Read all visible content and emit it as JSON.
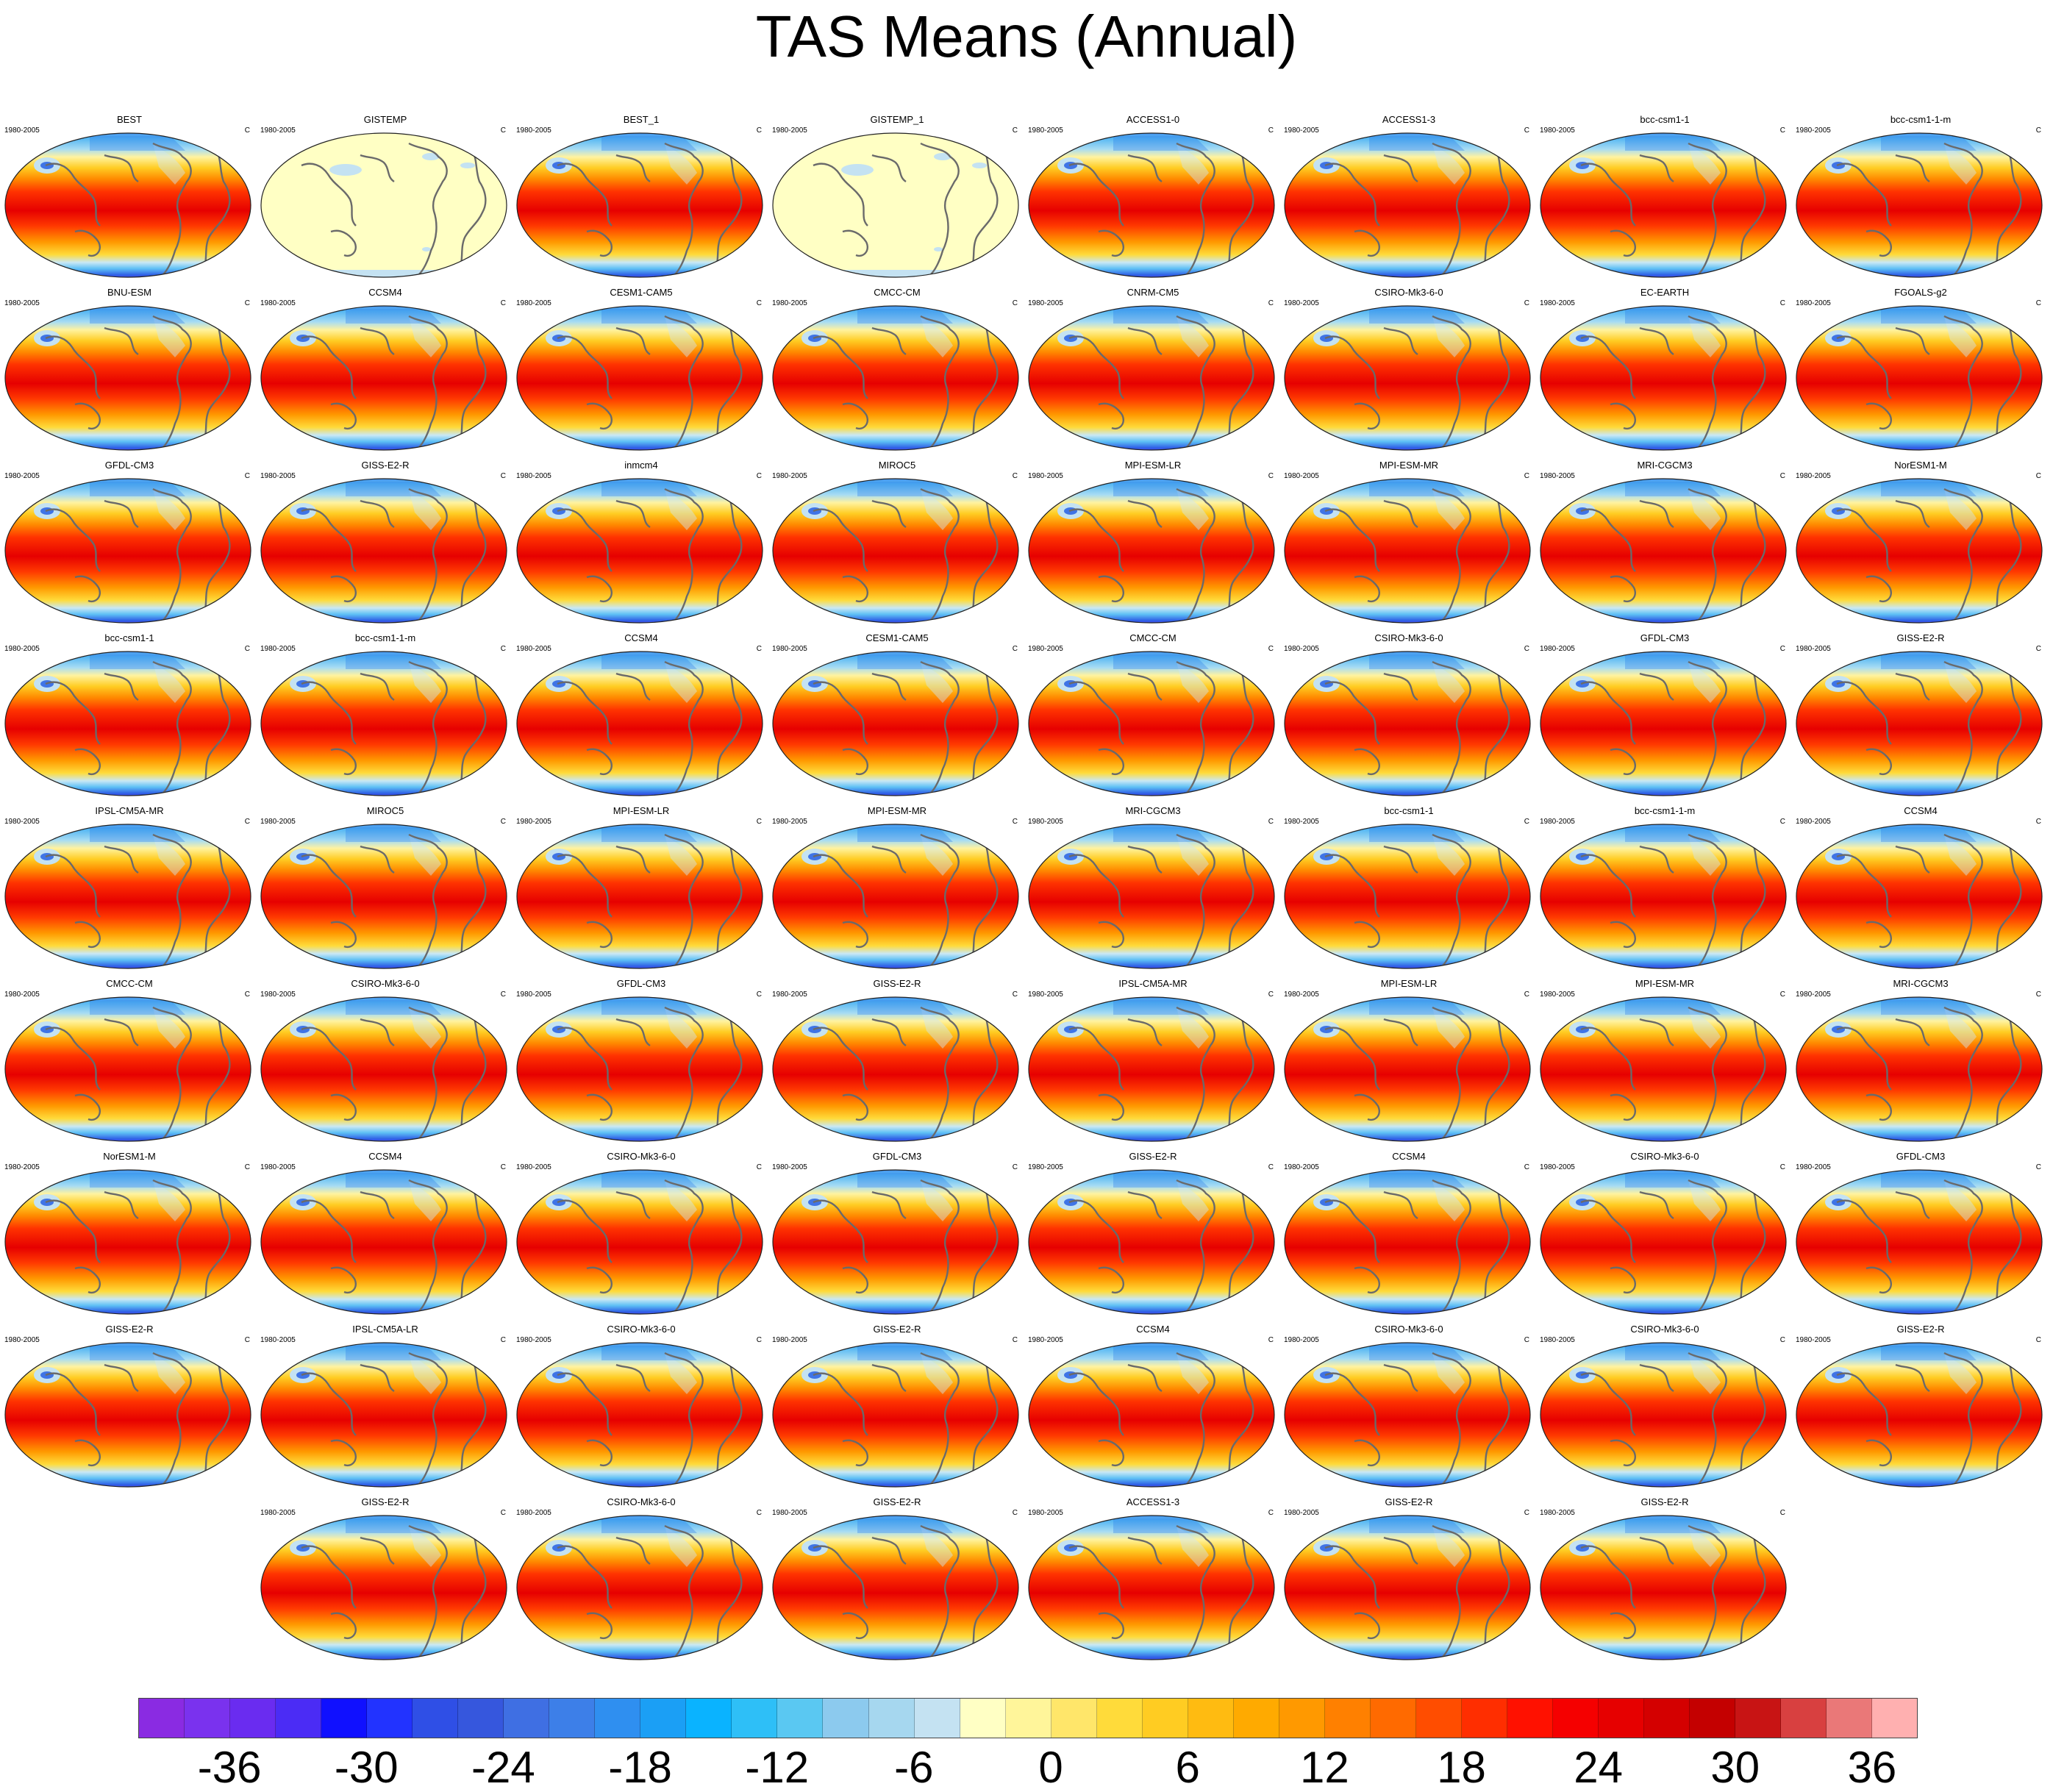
{
  "title": "TAS Means (Annual)",
  "panel_defaults": {
    "left_string": "1980-2005",
    "right_string": "C"
  },
  "panels": [
    {
      "title": "BEST",
      "style": "model"
    },
    {
      "title": "GISTEMP",
      "style": "anomaly"
    },
    {
      "title": "BEST_1",
      "style": "model"
    },
    {
      "title": "GISTEMP_1",
      "style": "anomaly"
    },
    {
      "title": "ACCESS1-0",
      "style": "model"
    },
    {
      "title": "ACCESS1-3",
      "style": "model"
    },
    {
      "title": "bcc-csm1-1",
      "style": "model"
    },
    {
      "title": "bcc-csm1-1-m",
      "style": "model"
    },
    {
      "title": "BNU-ESM",
      "style": "model"
    },
    {
      "title": "CCSM4",
      "style": "model"
    },
    {
      "title": "CESM1-CAM5",
      "style": "model"
    },
    {
      "title": "CMCC-CM",
      "style": "model"
    },
    {
      "title": "CNRM-CM5",
      "style": "model"
    },
    {
      "title": "CSIRO-Mk3-6-0",
      "style": "model"
    },
    {
      "title": "EC-EARTH",
      "style": "model"
    },
    {
      "title": "FGOALS-g2",
      "style": "model"
    },
    {
      "title": "GFDL-CM3",
      "style": "model"
    },
    {
      "title": "GISS-E2-R",
      "style": "model"
    },
    {
      "title": "inmcm4",
      "style": "model"
    },
    {
      "title": "MIROC5",
      "style": "model"
    },
    {
      "title": "MPI-ESM-LR",
      "style": "model"
    },
    {
      "title": "MPI-ESM-MR",
      "style": "model"
    },
    {
      "title": "MRI-CGCM3",
      "style": "model"
    },
    {
      "title": "NorESM1-M",
      "style": "model"
    },
    {
      "title": "bcc-csm1-1",
      "style": "model"
    },
    {
      "title": "bcc-csm1-1-m",
      "style": "model"
    },
    {
      "title": "CCSM4",
      "style": "model"
    },
    {
      "title": "CESM1-CAM5",
      "style": "model"
    },
    {
      "title": "CMCC-CM",
      "style": "model"
    },
    {
      "title": "CSIRO-Mk3-6-0",
      "style": "model"
    },
    {
      "title": "GFDL-CM3",
      "style": "model"
    },
    {
      "title": "GISS-E2-R",
      "style": "model"
    },
    {
      "title": "IPSL-CM5A-MR",
      "style": "model"
    },
    {
      "title": "MIROC5",
      "style": "model"
    },
    {
      "title": "MPI-ESM-LR",
      "style": "model"
    },
    {
      "title": "MPI-ESM-MR",
      "style": "model"
    },
    {
      "title": "MRI-CGCM3",
      "style": "model"
    },
    {
      "title": "bcc-csm1-1",
      "style": "model"
    },
    {
      "title": "bcc-csm1-1-m",
      "style": "model"
    },
    {
      "title": "CCSM4",
      "style": "model"
    },
    {
      "title": "CMCC-CM",
      "style": "model"
    },
    {
      "title": "CSIRO-Mk3-6-0",
      "style": "model"
    },
    {
      "title": "GFDL-CM3",
      "style": "model"
    },
    {
      "title": "GISS-E2-R",
      "style": "model"
    },
    {
      "title": "IPSL-CM5A-MR",
      "style": "model"
    },
    {
      "title": "MPI-ESM-LR",
      "style": "model"
    },
    {
      "title": "MPI-ESM-MR",
      "style": "model"
    },
    {
      "title": "MRI-CGCM3",
      "style": "model"
    },
    {
      "title": "NorESM1-M",
      "style": "model"
    },
    {
      "title": "CCSM4",
      "style": "model"
    },
    {
      "title": "CSIRO-Mk3-6-0",
      "style": "model"
    },
    {
      "title": "GFDL-CM3",
      "style": "model"
    },
    {
      "title": "GISS-E2-R",
      "style": "model"
    },
    {
      "title": "CCSM4",
      "style": "model"
    },
    {
      "title": "CSIRO-Mk3-6-0",
      "style": "model"
    },
    {
      "title": "GFDL-CM3",
      "style": "model"
    },
    {
      "title": "GISS-E2-R",
      "style": "model"
    },
    {
      "title": "IPSL-CM5A-LR",
      "style": "model"
    },
    {
      "title": "CSIRO-Mk3-6-0",
      "style": "model"
    },
    {
      "title": "GISS-E2-R",
      "style": "model"
    },
    {
      "title": "CCSM4",
      "style": "model"
    },
    {
      "title": "CSIRO-Mk3-6-0",
      "style": "model"
    },
    {
      "title": "CSIRO-Mk3-6-0",
      "style": "model"
    },
    {
      "title": "GISS-E2-R",
      "style": "model"
    },
    {
      "title": "GISS-E2-R",
      "style": "model"
    },
    {
      "title": "CSIRO-Mk3-6-0",
      "style": "model"
    },
    {
      "title": "GISS-E2-R",
      "style": "model"
    },
    {
      "title": "ACCESS1-3",
      "style": "model"
    },
    {
      "title": "GISS-E2-R",
      "style": "model"
    },
    {
      "title": "GISS-E2-R",
      "style": "model"
    }
  ],
  "colorbar": {
    "units": "C",
    "min": -40,
    "max": 42,
    "step": 2,
    "colors": [
      "#8a2be2",
      "#7a32ee",
      "#6a2cf0",
      "#4b2cf5",
      "#1010ff",
      "#2233ff",
      "#2f4fe6",
      "#3657dd",
      "#3f6fe3",
      "#3d7fe8",
      "#2f8ff0",
      "#1b9ff5",
      "#0ab3ff",
      "#2ebff7",
      "#5ac8f2",
      "#8ccaee",
      "#a6d7ef",
      "#c4e2f2",
      "#ffffc4",
      "#fff59a",
      "#ffe66a",
      "#ffdb3a",
      "#ffcc22",
      "#ffbb11",
      "#ffaa00",
      "#ff9900",
      "#ff8000",
      "#ff6a00",
      "#ff4d00",
      "#ff2e00",
      "#ff1100",
      "#f50000",
      "#e60000",
      "#d40000",
      "#c40000",
      "#c81414",
      "#d84040",
      "#ea7878",
      "#ffb0b0"
    ],
    "tick_labels": [
      "-36",
      "-30",
      "-24",
      "-18",
      "-12",
      "-6",
      "0",
      "6",
      "12",
      "18",
      "24",
      "30",
      "36"
    ]
  }
}
